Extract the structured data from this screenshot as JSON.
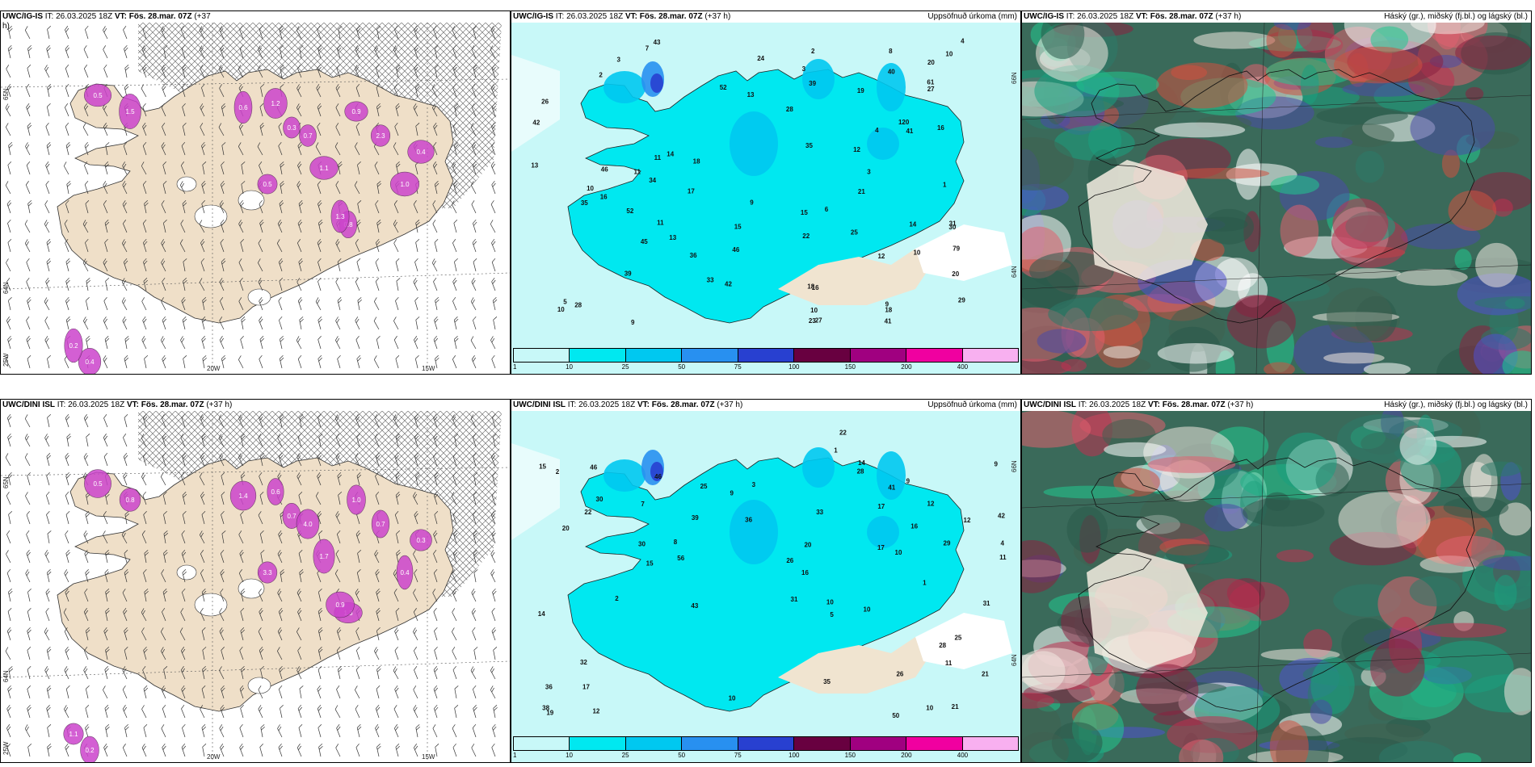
{
  "colorbar": {
    "colors": [
      "#c8f8f8",
      "#00e8f0",
      "#00c8f0",
      "#2890f0",
      "#2840d0",
      "#680040",
      "#a00080",
      "#f000a0",
      "#f8b0f0"
    ],
    "ticks": [
      "1",
      "10",
      "25",
      "50",
      "75",
      "100",
      "150",
      "200",
      "400"
    ]
  },
  "panels": [
    {
      "kind": "wind",
      "title_model": "UWC/IG-IS",
      "title_it": "IT: 26.03.2025 18Z",
      "title_vt": "VT: Fös. 28.mar. 07Z",
      "title_lead": "(+37",
      "title_extra": "h)",
      "right": "",
      "lon_labels": [
        "20W",
        "15W"
      ],
      "lat_labels": [
        "65N",
        "64N",
        "25W"
      ],
      "values": [
        "0.5",
        "1.5",
        "0.6",
        "1.2",
        "0.9",
        "2.3",
        "0.4",
        "1.0",
        "0.8",
        "1.1",
        "0.3",
        "0.7",
        "0.5",
        "1.3",
        "0.4",
        "0.2"
      ]
    },
    {
      "kind": "precip",
      "title_model": "UWC/IG-IS",
      "title_it": "IT: 26.03.2025 18Z",
      "title_vt": "VT: Fös. 28.mar. 07Z",
      "title_lead": "(+37 h)",
      "right": "Uppsöfnuð úrkoma (mm)",
      "lon_labels": [
        "66N",
        "64N"
      ],
      "values": [
        "16",
        "11",
        "18",
        "35",
        "46",
        "52",
        "10",
        "35",
        "16",
        "120",
        "79",
        "8",
        "27",
        "42",
        "18",
        "16",
        "24",
        "43",
        "31",
        "46",
        "61",
        "42",
        "39",
        "52",
        "15",
        "13",
        "14",
        "29",
        "30",
        "27",
        "17",
        "12",
        "33",
        "39",
        "26",
        "45",
        "20",
        "34",
        "40",
        "22",
        "21",
        "11",
        "18",
        "25",
        "28",
        "19",
        "28",
        "23",
        "12",
        "6",
        "5",
        "9",
        "7",
        "10",
        "13",
        "9",
        "36",
        "10",
        "9",
        "41",
        "10",
        "4",
        "3",
        "2",
        "1",
        "13",
        "14",
        "11",
        "15",
        "20",
        "10",
        "3",
        "41",
        "4",
        "2",
        "3"
      ]
    },
    {
      "kind": "cloud",
      "title_model": "UWC/IG-IS",
      "title_it": "IT: 26.03.2025 18Z",
      "title_vt": "VT: Fös. 28.mar. 07Z",
      "title_lead": "(+37 h)",
      "right": "Háský (gr.), miðský (fj.bl.) og lágský (bl.)"
    },
    {
      "kind": "wind",
      "title_model": "UWC/DINI ISL",
      "title_it": "IT: 26.03.2025 18Z",
      "title_vt": "VT: Fös. 28.mar. 07Z",
      "title_lead": "(+37 h)",
      "title_extra": "",
      "right": "",
      "lon_labels": [
        "20W",
        "15W"
      ],
      "lat_labels": [
        "65N",
        "64N",
        "25W"
      ],
      "values": [
        "0.5",
        "0.8",
        "1.4",
        "0.6",
        "1.0",
        "0.7",
        "0.3",
        "0.4",
        "1.3",
        "1.7",
        "0.7",
        "4.0",
        "3.3",
        "0.9",
        "0.2",
        "1.1"
      ]
    },
    {
      "kind": "precip",
      "title_model": "UWC/DINI ISL",
      "title_it": "IT: 26.03.2025 18Z",
      "title_vt": "VT: Fös. 28.mar. 07Z",
      "title_lead": "(+37 h)",
      "right": "Uppsöfnuð úrkoma (mm)",
      "lon_labels": [
        "66N",
        "64N"
      ],
      "values": [
        "14",
        "16",
        "35",
        "12",
        "56",
        "42",
        "41",
        "46",
        "43",
        "32",
        "50",
        "15",
        "30",
        "30",
        "25",
        "36",
        "17",
        "28",
        "17",
        "29",
        "39",
        "26",
        "21",
        "22",
        "20",
        "22",
        "31",
        "36",
        "25",
        "20",
        "10",
        "31",
        "28",
        "33",
        "9",
        "12",
        "11",
        "10",
        "17",
        "12",
        "46",
        "4",
        "2",
        "1",
        "7",
        "5",
        "14",
        "16",
        "9",
        "10",
        "38",
        "10",
        "26",
        "15",
        "8",
        "3",
        "9",
        "21",
        "19",
        "11",
        "10",
        "1",
        "2"
      ]
    },
    {
      "kind": "cloud",
      "title_model": "UWC/DINI ISL",
      "title_it": "IT: 26.03.2025 18Z",
      "title_vt": "VT: Fös. 28.mar. 07Z",
      "title_lead": "(+37 h)",
      "right": "Háský (gr.), miðský (fj.bl.) og lágský (bl.)"
    }
  ]
}
